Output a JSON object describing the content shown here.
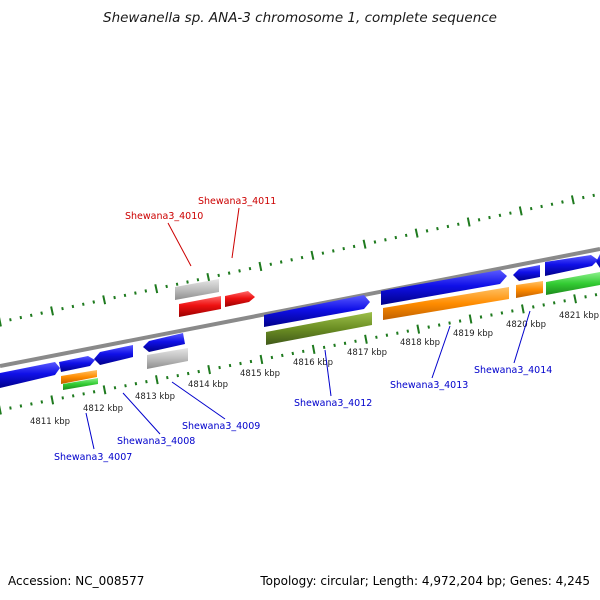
{
  "title": "Shewanella sp. ANA-3 chromosome 1, complete sequence",
  "footer": {
    "accession": "Accession: NC_008577",
    "summary": "Topology: circular; Length: 4,972,204 bp; Genes: 4,245"
  },
  "ticks": [
    "4811 kbp",
    "4812 kbp",
    "4813 kbp",
    "4814 kbp",
    "4815 kbp",
    "4816 kbp",
    "4817 kbp",
    "4818 kbp",
    "4819 kbp",
    "4820 kbp",
    "4821 kbp"
  ],
  "gene_labels": {
    "g4007": "Shewana3_4007",
    "g4008": "Shewana3_4008",
    "g4009": "Shewana3_4009",
    "g4010": "Shewana3_4010",
    "g4011": "Shewana3_4011",
    "g4012": "Shewana3_4012",
    "g4013": "Shewana3_4013",
    "g4014": "Shewana3_4014"
  },
  "colors": {
    "cds": "#1010e8",
    "highlight": "#e01010",
    "pseudo": "#b8b8b8",
    "orange": "#ff8c00",
    "green": "#33cc33",
    "olive": "#6b8e23",
    "tick": "#1e7a1e",
    "backbone": "#8a8a8a",
    "blue_label": "#0000cc",
    "red_label": "#cc0000"
  }
}
